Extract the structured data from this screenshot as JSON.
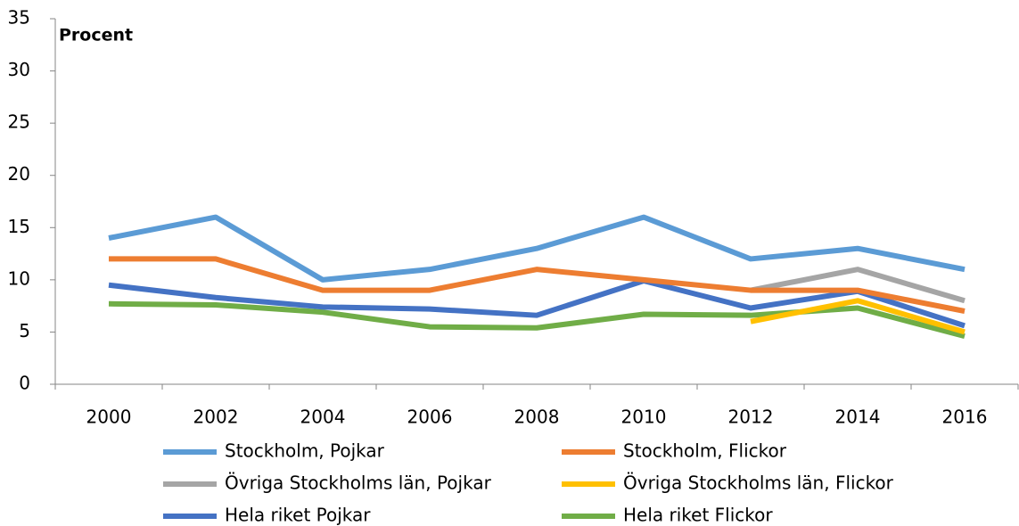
{
  "chart_data": {
    "type": "line",
    "y_label": "Procent",
    "categories": [
      "2000",
      "2002",
      "2004",
      "2006",
      "2008",
      "2010",
      "2012",
      "2014",
      "2016"
    ],
    "series": [
      {
        "name": "Hela riket Flickor",
        "color": "#70ad47",
        "values": [
          7.7,
          7.6,
          6.9,
          5.5,
          5.4,
          6.7,
          6.6,
          7.3,
          4.6
        ]
      },
      {
        "name": "Hela riket Pojkar",
        "color": "#4472c4",
        "values": [
          9.5,
          8.3,
          7.4,
          7.2,
          6.6,
          9.9,
          7.3,
          8.9,
          5.6
        ]
      },
      {
        "name": "Övriga Stockholms län, Flickor",
        "color": "#ffc000",
        "values": [
          null,
          null,
          null,
          null,
          null,
          null,
          6,
          8,
          5
        ]
      },
      {
        "name": "Övriga Stockholms län, Pojkar",
        "color": "#a5a5a5",
        "values": [
          null,
          null,
          null,
          null,
          null,
          null,
          9,
          11,
          8
        ]
      },
      {
        "name": "Stockholm, Flickor",
        "color": "#ed7d31",
        "values": [
          12,
          12,
          9,
          9,
          11,
          10,
          9,
          9,
          7
        ]
      },
      {
        "name": "Stockholm, Pojkar",
        "color": "#5b9bd5",
        "values": [
          14,
          16,
          10,
          11,
          13,
          16,
          12,
          13,
          11
        ]
      }
    ],
    "ylim": [
      0,
      35
    ],
    "yticks": [
      0,
      5,
      10,
      15,
      20,
      25,
      30,
      35
    ],
    "grid": false
  }
}
